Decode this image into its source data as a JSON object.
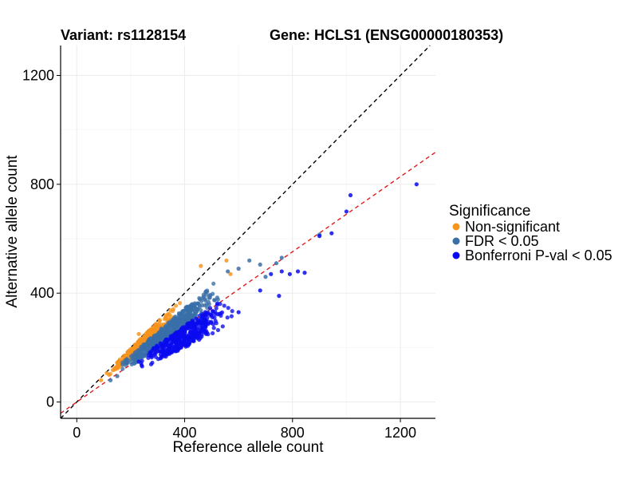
{
  "chart_data": {
    "type": "scatter",
    "title_left": "Variant: rs1128154",
    "title_right": "Gene: HCLS1 (ENSG00000180353)",
    "xlabel": "Reference allele count",
    "ylabel": "Alternative allele count",
    "xlim": [
      -60,
      1330
    ],
    "ylim": [
      -60,
      1310
    ],
    "x_ticks": [
      0,
      400,
      800,
      1200
    ],
    "y_ticks": [
      0,
      400,
      800,
      1200
    ],
    "grid": true,
    "reference_lines": [
      {
        "name": "identity",
        "slope": 1.0,
        "intercept": 0,
        "color": "#000000",
        "style": "dashed"
      },
      {
        "name": "fit",
        "slope": 0.69,
        "intercept": 0,
        "color": "#e41a1c",
        "style": "dashed"
      }
    ],
    "legend": {
      "title": "Significance",
      "position": "right",
      "entries": [
        {
          "label": "Non-significant",
          "color": "#f7941d"
        },
        {
          "label": "FDR < 0.05",
          "color": "#3a6fa8"
        },
        {
          "label": "Bonferroni P-val < 0.05",
          "color": "#0a0af0"
        }
      ]
    },
    "series": [
      {
        "name": "Non-significant",
        "color": "#f7941d",
        "cluster": {
          "x_range": [
            90,
            400
          ],
          "ratio_range": [
            0.8,
            0.98
          ],
          "count": 330
        },
        "points": [
          [
            90,
            80
          ],
          [
            120,
            100
          ],
          [
            140,
            125
          ],
          [
            160,
            150
          ],
          [
            230,
            250
          ],
          [
            330,
            318
          ],
          [
            460,
            500
          ],
          [
            555,
            520
          ],
          [
            570,
            470
          ]
        ]
      },
      {
        "name": "FDR < 0.05",
        "color": "#3a6fa8",
        "cluster": {
          "x_range": [
            120,
            560
          ],
          "ratio_range": [
            0.66,
            0.86
          ],
          "count": 620
        },
        "points": [
          [
            125,
            80
          ],
          [
            150,
            95
          ],
          [
            560,
            480
          ],
          [
            600,
            490
          ],
          [
            640,
            520
          ],
          [
            680,
            505
          ],
          [
            700,
            460
          ],
          [
            740,
            510
          ],
          [
            760,
            530
          ],
          [
            900,
            615
          ]
        ]
      },
      {
        "name": "Bonferroni P-val < 0.05",
        "color": "#0a0af0",
        "cluster": {
          "x_range": [
            200,
            600
          ],
          "ratio_range": [
            0.5,
            0.7
          ],
          "count": 420
        },
        "points": [
          [
            280,
            170
          ],
          [
            330,
            190
          ],
          [
            400,
            210
          ],
          [
            480,
            250
          ],
          [
            600,
            330
          ],
          [
            680,
            410
          ],
          [
            720,
            470
          ],
          [
            760,
            480
          ],
          [
            790,
            470
          ],
          [
            820,
            480
          ],
          [
            845,
            475
          ],
          [
            750,
            390
          ],
          [
            900,
            610
          ],
          [
            945,
            620
          ],
          [
            1000,
            700
          ],
          [
            1015,
            760
          ],
          [
            1260,
            800
          ]
        ]
      }
    ]
  }
}
